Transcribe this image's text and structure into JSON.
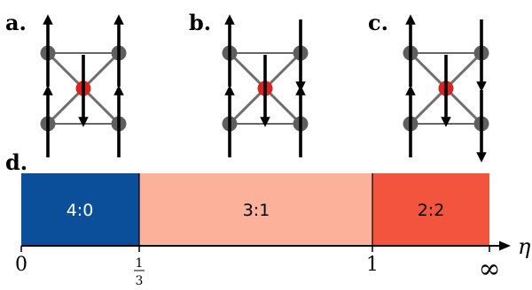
{
  "panels": [
    {
      "label": "a.",
      "corner_spins": [
        "up",
        "up",
        "up",
        "up"
      ],
      "center_spin": "down"
    },
    {
      "label": "b.",
      "corner_spins": [
        "up",
        "down",
        "up",
        "up"
      ],
      "center_spin": "down"
    },
    {
      "label": "c.",
      "corner_spins": [
        "up",
        "down",
        "up",
        "down"
      ],
      "center_spin": "down"
    }
  ],
  "phase_diagram": {
    "label": "d.",
    "axis_symbol": "η",
    "regions": [
      {
        "label": "4:0",
        "from": 0,
        "to": 0.333,
        "color": "#0b4f9b",
        "text_color": "#ffffff"
      },
      {
        "label": "3:1",
        "from": 0.333,
        "to": 1,
        "color": "#fbb19a",
        "text_color": "#000000"
      },
      {
        "label": "2:2",
        "from": 1,
        "to": "∞",
        "color": "#f3543d",
        "text_color": "#000000"
      }
    ],
    "ticks": [
      {
        "label": "0",
        "value": 0
      },
      {
        "label": "1/3",
        "numerator": "1",
        "denominator": "3",
        "value": 0.333
      },
      {
        "label": "1",
        "value": 1
      },
      {
        "label": "∞",
        "value": "∞"
      }
    ]
  },
  "colors": {
    "corner_node": "#5f5f5f",
    "center_node": "#d9231f",
    "edge": "#6e6e6e"
  }
}
